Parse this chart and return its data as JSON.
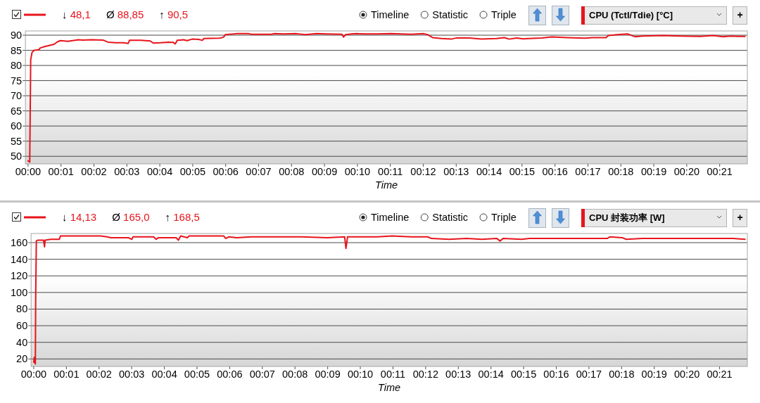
{
  "chart_data": [
    {
      "type": "line",
      "xlabel": "Time",
      "legend": "top",
      "grid": "y",
      "x": [
        0,
        0.05,
        0.07,
        0.08,
        0.12,
        0.18,
        0.33,
        0.37,
        0.52,
        0.79,
        0.89,
        0.98,
        1.21,
        1.53,
        1.66,
        1.93,
        2.27,
        2.43,
        2.66,
        2.89,
        3.04,
        3.08,
        3.42,
        3.71,
        3.8,
        4.03,
        4.26,
        4.41,
        4.47,
        4.53,
        4.72,
        4.83,
        4.98,
        5.18,
        5.29,
        5.34,
        5.79,
        5.86,
        5.94,
        5.99,
        6.24,
        6.32,
        6.7,
        6.78,
        7.39,
        7.47,
        7.77,
        8.15,
        8.42,
        8.76,
        9.07,
        9.53,
        9.58,
        9.64,
        9.83,
        9.98,
        10.29,
        10.6,
        11.02,
        11.63,
        12.01,
        12.13,
        12.28,
        12.55,
        12.85,
        13.01,
        13.39,
        13.77,
        14.23,
        14.46,
        14.61,
        14.84,
        15.03,
        15.22,
        15.6,
        15.91,
        16.36,
        16.9,
        17.13,
        17.55,
        17.62,
        17.89,
        18.2,
        18.43,
        18.66,
        19.27,
        19.8,
        20.41,
        20.79,
        21.1,
        21.33,
        21.56,
        21.77
      ],
      "series": [
        {
          "name": "CPU (Tctl/Tdie) [°C]",
          "color": "#e8141c",
          "values": [
            48.5,
            48.1,
            70,
            81.9,
            84.3,
            85,
            85.2,
            85.8,
            86.3,
            87,
            87.8,
            88.2,
            88,
            88.5,
            88.4,
            88.5,
            88.4,
            87.7,
            87.5,
            87.5,
            87.3,
            88.3,
            88.3,
            88.1,
            87.4,
            87.5,
            87.7,
            87.6,
            87.1,
            88.3,
            88.5,
            88.2,
            88.7,
            88.6,
            88.3,
            88.9,
            89,
            89.1,
            89.4,
            90.2,
            90.4,
            90.5,
            90.5,
            90.3,
            90.3,
            90.5,
            90.4,
            90.5,
            90.2,
            90.5,
            90.4,
            90.3,
            89.4,
            90.2,
            90.4,
            90.5,
            90.4,
            90.4,
            90.5,
            90.3,
            90.5,
            90.2,
            89.2,
            88.9,
            88.7,
            89.1,
            89.1,
            88.7,
            88.9,
            89.2,
            88.7,
            89.1,
            88.8,
            88.9,
            89.1,
            89.4,
            89.2,
            89,
            89.2,
            89.2,
            89.9,
            90.2,
            90.4,
            89.5,
            89.7,
            89.9,
            89.7,
            89.6,
            89.9,
            89.5,
            89.7,
            89.6,
            89.6
          ]
        }
      ],
      "xlim": [
        -0.08,
        21.84
      ],
      "ylim": [
        47.5,
        91.4
      ],
      "xticks": [
        {
          "value": 0,
          "label": "00:00"
        },
        {
          "value": 1,
          "label": "00:01"
        },
        {
          "value": 2,
          "label": "00:02"
        },
        {
          "value": 3,
          "label": "00:03"
        },
        {
          "value": 4,
          "label": "00:04"
        },
        {
          "value": 5,
          "label": "00:05"
        },
        {
          "value": 6,
          "label": "00:06"
        },
        {
          "value": 7,
          "label": "00:07"
        },
        {
          "value": 8,
          "label": "00:08"
        },
        {
          "value": 9,
          "label": "00:09"
        },
        {
          "value": 10,
          "label": "00:10"
        },
        {
          "value": 11,
          "label": "00:11"
        },
        {
          "value": 12,
          "label": "00:12"
        },
        {
          "value": 13,
          "label": "00:13"
        },
        {
          "value": 14,
          "label": "00:14"
        },
        {
          "value": 15,
          "label": "00:15"
        },
        {
          "value": 16,
          "label": "00:16"
        },
        {
          "value": 17,
          "label": "00:17"
        },
        {
          "value": 18,
          "label": "00:18"
        },
        {
          "value": 19,
          "label": "00:19"
        },
        {
          "value": 20,
          "label": "00:20"
        },
        {
          "value": 21,
          "label": "00:21"
        }
      ],
      "yticks": [
        50,
        55,
        60,
        65,
        70,
        75,
        80,
        85,
        90
      ],
      "annotations": [
        "↓ 48,1",
        "Ø 88,85",
        "↑ 90,5",
        "Timeline",
        "Statistic",
        "Triple",
        "+"
      ]
    },
    {
      "type": "line",
      "xlabel": "Time",
      "legend": "top",
      "grid": "y",
      "x": [
        0,
        0.02,
        0.03,
        0.05,
        0.06,
        0.08,
        0.13,
        0.3,
        0.33,
        0.35,
        0.52,
        0.78,
        0.82,
        1.13,
        1.52,
        2.05,
        2.25,
        2.36,
        2.9,
        3.0,
        3.04,
        3.67,
        3.75,
        3.82,
        4.36,
        4.43,
        4.5,
        4.71,
        4.75,
        5.13,
        5.82,
        5.88,
        5.98,
        6.21,
        6.67,
        7.44,
        8.21,
        8.98,
        9.52,
        9.56,
        9.61,
        9.75,
        10.52,
        10.98,
        11.56,
        11.87,
        12.06,
        12.18,
        12.72,
        13.25,
        13.72,
        14.18,
        14.28,
        14.37,
        14.94,
        15.18,
        15.95,
        16.72,
        17.56,
        17.64,
        18.02,
        18.14,
        18.64,
        19.41,
        20.18,
        20.95,
        21.41,
        21.78
      ],
      "series": [
        {
          "name": "CPU 封装功率 [W]",
          "color": "#e8141c",
          "values": [
            16,
            22,
            16,
            14,
            91,
            162,
            163,
            163,
            155,
            163,
            164,
            164,
            168,
            168,
            168,
            168,
            167,
            166,
            166,
            164,
            167,
            167,
            164,
            166,
            166,
            163,
            168,
            166,
            168,
            168,
            168,
            165,
            167,
            166,
            167,
            167,
            167,
            166,
            167,
            153,
            167,
            167,
            167,
            168,
            167,
            167,
            167,
            165,
            164,
            165,
            164,
            165,
            162,
            165,
            164,
            165,
            165,
            165,
            165,
            167,
            166,
            164,
            165,
            165,
            165,
            165,
            165,
            164
          ]
        }
      ],
      "xlim": [
        -0.08,
        21.85
      ],
      "ylim": [
        11,
        171
      ],
      "xticks": [
        {
          "value": 0,
          "label": "00:00"
        },
        {
          "value": 1,
          "label": "00:01"
        },
        {
          "value": 2,
          "label": "00:02"
        },
        {
          "value": 3,
          "label": "00:03"
        },
        {
          "value": 4,
          "label": "00:04"
        },
        {
          "value": 5,
          "label": "00:05"
        },
        {
          "value": 6,
          "label": "00:06"
        },
        {
          "value": 7,
          "label": "00:07"
        },
        {
          "value": 8,
          "label": "00:08"
        },
        {
          "value": 9,
          "label": "00:09"
        },
        {
          "value": 10,
          "label": "00:10"
        },
        {
          "value": 11,
          "label": "00:11"
        },
        {
          "value": 12,
          "label": "00:12"
        },
        {
          "value": 13,
          "label": "00:13"
        },
        {
          "value": 14,
          "label": "00:14"
        },
        {
          "value": 15,
          "label": "00:15"
        },
        {
          "value": 16,
          "label": "00:16"
        },
        {
          "value": 17,
          "label": "00:17"
        },
        {
          "value": 18,
          "label": "00:18"
        },
        {
          "value": 19,
          "label": "00:19"
        },
        {
          "value": 20,
          "label": "00:20"
        },
        {
          "value": 21,
          "label": "00:21"
        }
      ],
      "yticks": [
        20,
        40,
        60,
        80,
        100,
        120,
        140,
        160
      ],
      "annotations": [
        "↓ 14,13",
        "Ø 165,0",
        "↑ 168,5",
        "Timeline",
        "Statistic",
        "Triple",
        "+"
      ]
    }
  ]
}
